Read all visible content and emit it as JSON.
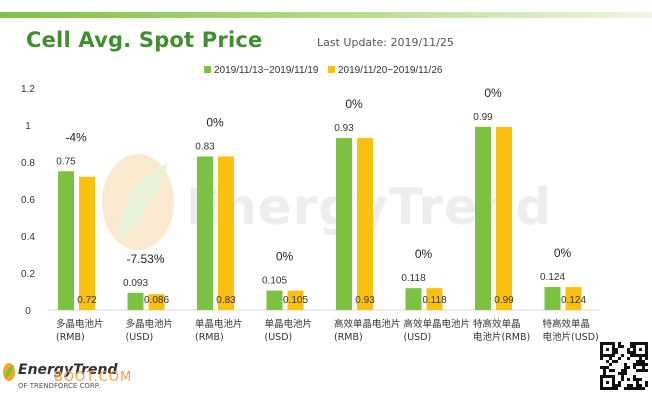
{
  "header": {
    "title": "Cell Avg. Spot Price",
    "last_update": "Last Update: 2019/11/25"
  },
  "watermark": {
    "text": "EnergyTrend"
  },
  "footer": {
    "logo_text": "EnergyTrend",
    "logo_sub": "OF TRENDFORCE CORP.",
    "site_text": "BOOT.COM"
  },
  "colors": {
    "series1": "#7cc242",
    "series2": "#fbc10e",
    "title_green": "#3f8f2f"
  },
  "chart_data": {
    "type": "bar",
    "ylim": [
      0,
      1.2
    ],
    "yticks": [
      "0",
      "0.2",
      "0.4",
      "0.6",
      "0.8",
      "1",
      "1.2"
    ],
    "grid": false,
    "legend_position": "top",
    "categories": [
      [
        "多晶电池片",
        "(RMB)"
      ],
      [
        "多晶电池片",
        "(USD)"
      ],
      [
        "单晶电池片",
        "(RMB)"
      ],
      [
        "单晶电池片",
        "(USD)"
      ],
      [
        "高效单晶电池片",
        "(RMB)"
      ],
      [
        "高效单晶电池片",
        "(USD)"
      ],
      [
        "特高效单晶",
        "电池片(RMB)"
      ],
      [
        "特高效单晶",
        "电池片(USD)"
      ]
    ],
    "series": [
      {
        "name": "2019/11/13~2019/11/19",
        "color": "#7cc242",
        "values": [
          0.75,
          0.093,
          0.83,
          0.105,
          0.93,
          0.118,
          0.99,
          0.124
        ],
        "labels": [
          "0.75",
          "0.093",
          "0.83",
          "0.105",
          "0.93",
          "0.118",
          "0.99",
          "0.124"
        ]
      },
      {
        "name": "2019/11/20~2019/11/26",
        "color": "#fbc10e",
        "values": [
          0.72,
          0.086,
          0.83,
          0.105,
          0.93,
          0.118,
          0.99,
          0.124
        ],
        "labels": [
          "0.72",
          "0.086",
          "0.83",
          "0.105",
          "0.93",
          "0.118",
          "0.99",
          "0.124"
        ]
      }
    ],
    "changes": [
      "-4%",
      "-7.53%",
      "0%",
      "0%",
      "0%",
      "0%",
      "0%",
      "0%"
    ]
  }
}
